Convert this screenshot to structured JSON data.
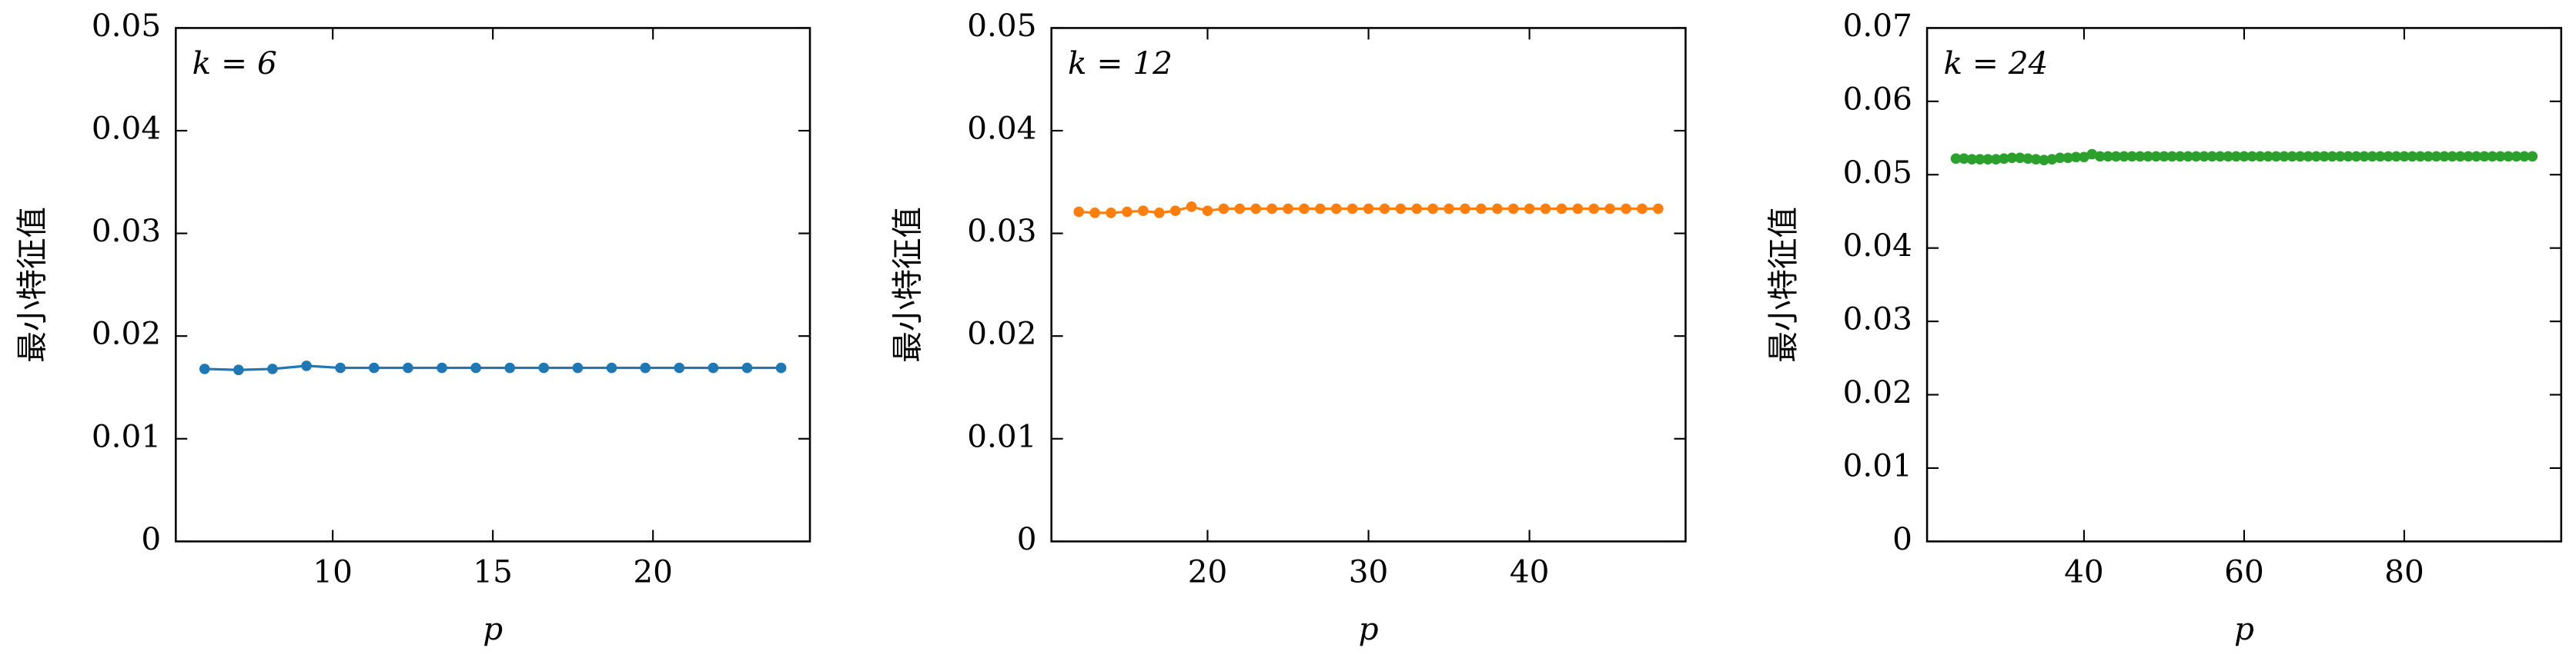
{
  "chart_data": [
    {
      "type": "line",
      "annotation": "k = 6",
      "xlabel": "p",
      "ylabel": "最小特征值",
      "x": [
        6,
        7.06,
        8.12,
        9.18,
        10.24,
        11.29,
        12.35,
        13.41,
        14.47,
        15.53,
        16.59,
        17.65,
        18.71,
        19.76,
        20.82,
        21.88,
        22.94,
        24
      ],
      "series": [
        {
          "color": "#1f77b4",
          "values": [
            0.0168,
            0.0167,
            0.0168,
            0.0171,
            0.0169,
            0.0169,
            0.0169,
            0.0169,
            0.0169,
            0.0169,
            0.0169,
            0.0169,
            0.0169,
            0.0169,
            0.0169,
            0.0169,
            0.0169,
            0.0169
          ]
        }
      ],
      "xlim": [
        5.1,
        24.9
      ],
      "xticks": [
        10,
        15,
        20
      ],
      "ylim": [
        0,
        0.05
      ],
      "yticks": [
        0,
        0.01,
        0.02,
        0.03,
        0.04,
        0.05
      ]
    },
    {
      "type": "line",
      "annotation": "k = 12",
      "xlabel": "p",
      "ylabel": "最小特征值",
      "x": [
        12,
        13,
        14,
        15,
        16,
        17,
        18,
        19,
        20,
        21,
        22,
        23,
        24,
        25,
        26,
        27,
        28,
        29,
        30,
        31,
        32,
        33,
        34,
        35,
        36,
        37,
        38,
        39,
        40,
        41,
        42,
        43,
        44,
        45,
        46,
        47,
        48
      ],
      "series": [
        {
          "color": "#ff7f0e",
          "values": [
            0.0321,
            0.032,
            0.032,
            0.0321,
            0.0322,
            0.032,
            0.0322,
            0.0326,
            0.0322,
            0.0324,
            0.0324,
            0.0324,
            0.0324,
            0.0324,
            0.0324,
            0.0324,
            0.0324,
            0.0324,
            0.0324,
            0.0324,
            0.0324,
            0.0324,
            0.0324,
            0.0324,
            0.0324,
            0.0324,
            0.0324,
            0.0324,
            0.0324,
            0.0324,
            0.0324,
            0.0324,
            0.0324,
            0.0324,
            0.0324,
            0.0324,
            0.0324
          ]
        }
      ],
      "xlim": [
        10.3,
        49.7
      ],
      "xticks": [
        20,
        30,
        40
      ],
      "ylim": [
        0,
        0.05
      ],
      "yticks": [
        0,
        0.01,
        0.02,
        0.03,
        0.04,
        0.05
      ]
    },
    {
      "type": "line",
      "annotation": "k = 24",
      "xlabel": "p",
      "ylabel": "最小特征值",
      "x": [
        24,
        25,
        26,
        27,
        28,
        29,
        30,
        31,
        32,
        33,
        34,
        35,
        36,
        37,
        38,
        39,
        40,
        41,
        42,
        43,
        44,
        45,
        46,
        47,
        48,
        49,
        50,
        51,
        52,
        53,
        54,
        55,
        56,
        57,
        58,
        59,
        60,
        61,
        62,
        63,
        64,
        65,
        66,
        67,
        68,
        69,
        70,
        71,
        72,
        73,
        74,
        75,
        76,
        77,
        78,
        79,
        80,
        81,
        82,
        83,
        84,
        85,
        86,
        87,
        88,
        89,
        90,
        91,
        92,
        93,
        94,
        95,
        96
      ],
      "series": [
        {
          "color": "#2ca02c",
          "values": [
            0.0522,
            0.0522,
            0.0521,
            0.0521,
            0.0521,
            0.0521,
            0.0522,
            0.0523,
            0.0523,
            0.0522,
            0.0521,
            0.052,
            0.0521,
            0.0523,
            0.0523,
            0.0524,
            0.0524,
            0.0528,
            0.0525,
            0.0525,
            0.0525,
            0.0525,
            0.0525,
            0.0525,
            0.0525,
            0.0525,
            0.0525,
            0.0525,
            0.0525,
            0.0525,
            0.0525,
            0.0525,
            0.0525,
            0.0525,
            0.0525,
            0.0525,
            0.0525,
            0.0525,
            0.0525,
            0.0525,
            0.0525,
            0.0525,
            0.0525,
            0.0525,
            0.0525,
            0.0525,
            0.0525,
            0.0525,
            0.0525,
            0.0525,
            0.0525,
            0.0525,
            0.0525,
            0.0525,
            0.0525,
            0.0525,
            0.0525,
            0.0525,
            0.0525,
            0.0525,
            0.0525,
            0.0525,
            0.0525,
            0.0525,
            0.0525,
            0.0525,
            0.0525,
            0.0525,
            0.0525,
            0.0525,
            0.0525,
            0.0525,
            0.0525
          ]
        }
      ],
      "xlim": [
        20.4,
        99.6
      ],
      "xticks": [
        40,
        60,
        80
      ],
      "ylim": [
        0,
        0.07
      ],
      "yticks": [
        0,
        0.01,
        0.02,
        0.03,
        0.04,
        0.05,
        0.06,
        0.07
      ]
    }
  ]
}
